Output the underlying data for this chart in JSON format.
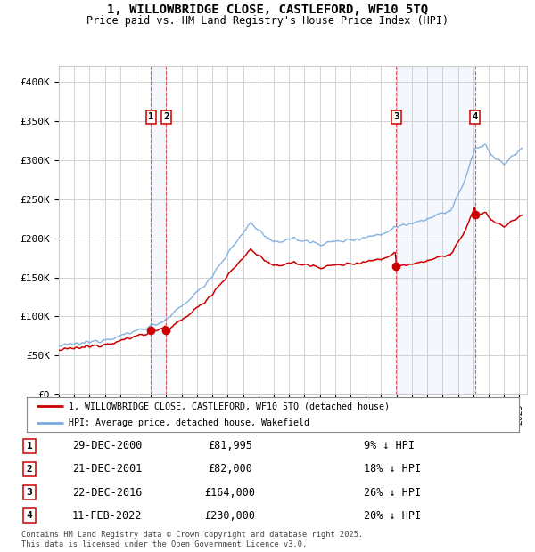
{
  "title_line1": "1, WILLOWBRIDGE CLOSE, CASTLEFORD, WF10 5TQ",
  "title_line2": "Price paid vs. HM Land Registry's House Price Index (HPI)",
  "xlim_start": 1995.0,
  "xlim_end": 2025.5,
  "ylim": [
    0,
    420000
  ],
  "yticks": [
    0,
    50000,
    100000,
    150000,
    200000,
    250000,
    300000,
    350000,
    400000
  ],
  "ytick_labels": [
    "£0",
    "£50K",
    "£100K",
    "£150K",
    "£200K",
    "£250K",
    "£300K",
    "£350K",
    "£400K"
  ],
  "sale_dates_num": [
    2001.0,
    2002.0,
    2016.98,
    2022.11
  ],
  "sale_prices": [
    81995,
    82000,
    164000,
    230000
  ],
  "sale_labels": [
    "1",
    "2",
    "3",
    "4"
  ],
  "red_line_color": "#cc0000",
  "blue_line_color": "#7aaadd",
  "vline_color": "#dd4444",
  "grid_color": "#cccccc",
  "bg_color": "#ffffff",
  "legend_entries": [
    "1, WILLOWBRIDGE CLOSE, CASTLEFORD, WF10 5TQ (detached house)",
    "HPI: Average price, detached house, Wakefield"
  ],
  "table_rows": [
    [
      "1",
      "29-DEC-2000",
      "£81,995",
      "9% ↓ HPI"
    ],
    [
      "2",
      "21-DEC-2001",
      "£82,000",
      "18% ↓ HPI"
    ],
    [
      "3",
      "22-DEC-2016",
      "£164,000",
      "26% ↓ HPI"
    ],
    [
      "4",
      "11-FEB-2022",
      "£230,000",
      "20% ↓ HPI"
    ]
  ],
  "footnote": "Contains HM Land Registry data © Crown copyright and database right 2025.\nThis data is licensed under the Open Government Licence v3.0."
}
